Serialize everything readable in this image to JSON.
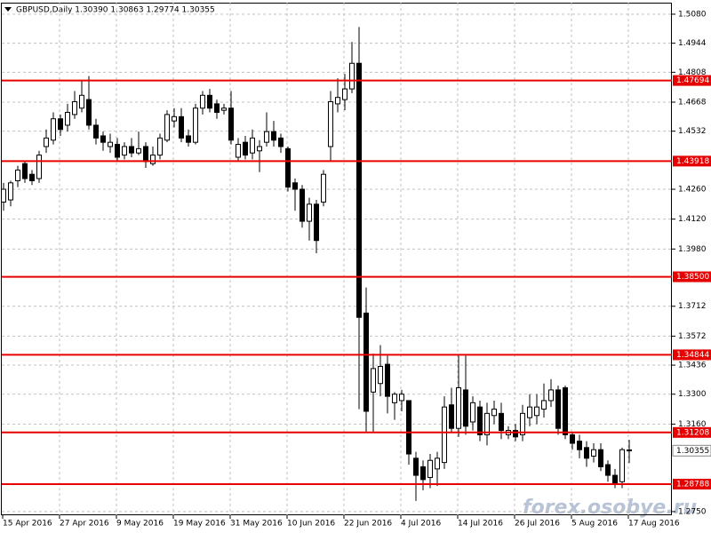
{
  "chart_data": {
    "type": "candlestick",
    "title": "GBPUSD,Daily  1.30390 1.30863 1.29774 1.30355",
    "watermark": "forex.osobye.ru",
    "categories": [
      "15 Apr 2016",
      null,
      null,
      null,
      null,
      null,
      null,
      null,
      "27 Apr 2016",
      null,
      null,
      null,
      null,
      null,
      null,
      null,
      "9 May 2016",
      null,
      null,
      null,
      null,
      null,
      null,
      null,
      "19 May 2016",
      null,
      null,
      null,
      null,
      null,
      null,
      null,
      "31 May 2016",
      null,
      null,
      null,
      null,
      null,
      null,
      null,
      "10 Jun 2016",
      null,
      null,
      null,
      null,
      null,
      null,
      null,
      "22 Jun 2016",
      null,
      null,
      null,
      null,
      null,
      null,
      null,
      "4 Jul 2016",
      null,
      null,
      null,
      null,
      null,
      null,
      null,
      "14 Jul 2016",
      null,
      null,
      null,
      null,
      null,
      null,
      null,
      "26 Jul 2016",
      null,
      null,
      null,
      null,
      null,
      null,
      null,
      "5 Aug 2016",
      null,
      null,
      null,
      null,
      null,
      null,
      null,
      "17 Aug 2016"
    ],
    "open": [
      1.42,
      1.421,
      1.43,
      1.438,
      1.433,
      1.431,
      1.446,
      1.449,
      1.459,
      1.456,
      1.461,
      1.464,
      1.468,
      1.456,
      1.451,
      1.446,
      1.447,
      1.442,
      1.446,
      1.443,
      1.446,
      1.438,
      1.442,
      1.449,
      1.458,
      1.46,
      1.451,
      1.448,
      1.464,
      1.47,
      1.466,
      1.463,
      1.464,
      1.441,
      1.448,
      1.443,
      1.444,
      1.448,
      1.453,
      1.45,
      1.445,
      1.429,
      1.426,
      1.411,
      1.419,
      1.42,
      1.446,
      1.466,
      1.468,
      1.473,
      1.485,
      1.368,
      1.331,
      1.335,
      1.344,
      1.326,
      1.327,
      1.327,
      1.3,
      1.296,
      1.291,
      1.295,
      1.298,
      1.325,
      1.314,
      1.332,
      1.317,
      1.324,
      1.311,
      1.32,
      1.321,
      1.311,
      1.313,
      1.311,
      1.319,
      1.32,
      1.323,
      1.327,
      1.332,
      1.333,
      1.311,
      1.308,
      1.305,
      1.301,
      1.304,
      1.297,
      1.292,
      1.289,
      1.3039
    ],
    "high": [
      1.429,
      1.43,
      1.437,
      1.439,
      1.435,
      1.444,
      1.454,
      1.462,
      1.461,
      1.466,
      1.472,
      1.477,
      1.479,
      1.459,
      1.453,
      1.452,
      1.45,
      1.448,
      1.45,
      1.453,
      1.448,
      1.446,
      1.452,
      1.463,
      1.464,
      1.464,
      1.454,
      1.466,
      1.472,
      1.473,
      1.468,
      1.466,
      1.472,
      1.45,
      1.451,
      1.454,
      1.449,
      1.462,
      1.458,
      1.452,
      1.446,
      1.431,
      1.428,
      1.422,
      1.421,
      1.435,
      1.472,
      1.478,
      1.48,
      1.495,
      1.502,
      1.38,
      1.349,
      1.353,
      1.348,
      1.331,
      1.332,
      1.327,
      1.303,
      1.299,
      1.302,
      1.303,
      1.329,
      1.333,
      1.348,
      1.348,
      1.329,
      1.327,
      1.326,
      1.327,
      1.326,
      1.315,
      1.316,
      1.325,
      1.33,
      1.33,
      1.335,
      1.337,
      1.334,
      1.334,
      1.312,
      1.311,
      1.308,
      1.307,
      1.307,
      1.299,
      1.295,
      1.305,
      1.30863
    ],
    "low": [
      1.416,
      1.418,
      1.427,
      1.429,
      1.428,
      1.429,
      1.443,
      1.447,
      1.451,
      1.453,
      1.459,
      1.462,
      1.454,
      1.447,
      1.444,
      1.443,
      1.439,
      1.44,
      1.441,
      1.442,
      1.436,
      1.437,
      1.44,
      1.448,
      1.455,
      1.448,
      1.446,
      1.447,
      1.461,
      1.462,
      1.459,
      1.461,
      1.447,
      1.439,
      1.44,
      1.44,
      1.434,
      1.446,
      1.446,
      1.443,
      1.425,
      1.416,
      1.408,
      1.402,
      1.396,
      1.418,
      1.439,
      1.462,
      1.463,
      1.471,
      1.323,
      1.312,
      1.312,
      1.329,
      1.321,
      1.318,
      1.322,
      1.297,
      1.28,
      1.285,
      1.286,
      1.287,
      1.295,
      1.312,
      1.31,
      1.311,
      1.313,
      1.308,
      1.306,
      1.316,
      1.309,
      1.309,
      1.308,
      1.308,
      1.315,
      1.316,
      1.319,
      1.324,
      1.311,
      1.309,
      1.304,
      1.3,
      1.296,
      1.298,
      1.294,
      1.289,
      1.286,
      1.286,
      1.29774
    ],
    "close": [
      1.426,
      1.429,
      1.435,
      1.431,
      1.43,
      1.442,
      1.45,
      1.459,
      1.454,
      1.462,
      1.467,
      1.47,
      1.456,
      1.45,
      1.448,
      1.448,
      1.441,
      1.446,
      1.443,
      1.445,
      1.439,
      1.442,
      1.45,
      1.461,
      1.46,
      1.45,
      1.448,
      1.464,
      1.47,
      1.464,
      1.462,
      1.464,
      1.449,
      1.447,
      1.442,
      1.45,
      1.446,
      1.453,
      1.449,
      1.446,
      1.427,
      1.426,
      1.411,
      1.419,
      1.402,
      1.433,
      1.467,
      1.469,
      1.473,
      1.485,
      1.366,
      1.322,
      1.342,
      1.343,
      1.329,
      1.33,
      1.33,
      1.302,
      1.292,
      1.29,
      1.299,
      1.3,
      1.324,
      1.314,
      1.333,
      1.315,
      1.326,
      1.311,
      1.321,
      1.323,
      1.313,
      1.313,
      1.31,
      1.321,
      1.324,
      1.324,
      1.327,
      1.332,
      1.314,
      1.311,
      1.307,
      1.304,
      1.3,
      1.304,
      1.296,
      1.292,
      1.288,
      1.304,
      1.30355
    ],
    "up_color": "#ffffff",
    "down_color": "#000000",
    "level_color": "#e60000",
    "levels": [
      1.47694,
      1.43918,
      {
        "value": 1.385,
        "label": "1.38500"
      },
      1.34844,
      1.31208,
      1.28788
    ],
    "last_price": 1.30355,
    "ylim": [
      1.2733,
      1.5134
    ],
    "yticks": [
      {
        "value": 1.508,
        "label": "1.5080"
      },
      1.4944,
      {
        "value": 1.4808,
        "label": "1.4808"
      },
      1.4668,
      1.4532,
      {
        "value": 1.426,
        "label": "1.4260"
      },
      {
        "value": 1.412,
        "label": "1.4120"
      },
      {
        "value": 1.398,
        "label": "1.3980"
      },
      1.3712,
      1.3572,
      1.3436,
      {
        "value": 1.33,
        "label": "1.3300"
      },
      {
        "value": 1.316,
        "label": "1.3160"
      },
      {
        "value": 1.275,
        "label": "1.2750"
      }
    ],
    "grid": true
  }
}
